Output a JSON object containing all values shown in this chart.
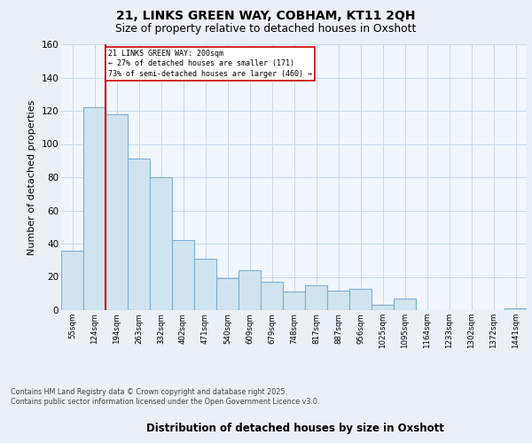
{
  "title_line1": "21, LINKS GREEN WAY, COBHAM, KT11 2QH",
  "title_line2": "Size of property relative to detached houses in Oxshott",
  "xlabel": "Distribution of detached houses by size in Oxshott",
  "ylabel": "Number of detached properties",
  "categories": [
    "55sqm",
    "124sqm",
    "194sqm",
    "263sqm",
    "332sqm",
    "402sqm",
    "471sqm",
    "540sqm",
    "609sqm",
    "679sqm",
    "748sqm",
    "817sqm",
    "887sqm",
    "956sqm",
    "1025sqm",
    "1095sqm",
    "1164sqm",
    "1233sqm",
    "1302sqm",
    "1372sqm",
    "1441sqm"
  ],
  "values": [
    36,
    122,
    118,
    91,
    80,
    42,
    31,
    19,
    24,
    17,
    11,
    15,
    12,
    13,
    3,
    7,
    0,
    0,
    0,
    0,
    1
  ],
  "bar_color": "#d0e4f0",
  "bar_edge_color": "#7bafd4",
  "vline_color": "#cc0000",
  "annotation_text": "21 LINKS GREEN WAY: 200sqm\n← 27% of detached houses are smaller (171)\n73% of semi-detached houses are larger (460) →",
  "annotation_box_edge": "#cc0000",
  "ylim": [
    0,
    160
  ],
  "yticks": [
    0,
    20,
    40,
    60,
    80,
    100,
    120,
    140,
    160
  ],
  "footer_text": "Contains HM Land Registry data © Crown copyright and database right 2025.\nContains public sector information licensed under the Open Government Licence v3.0.",
  "bg_color": "#eaf0f6",
  "plot_bg_color": "#f0f6fc",
  "grid_color": "#c8d8e8"
}
